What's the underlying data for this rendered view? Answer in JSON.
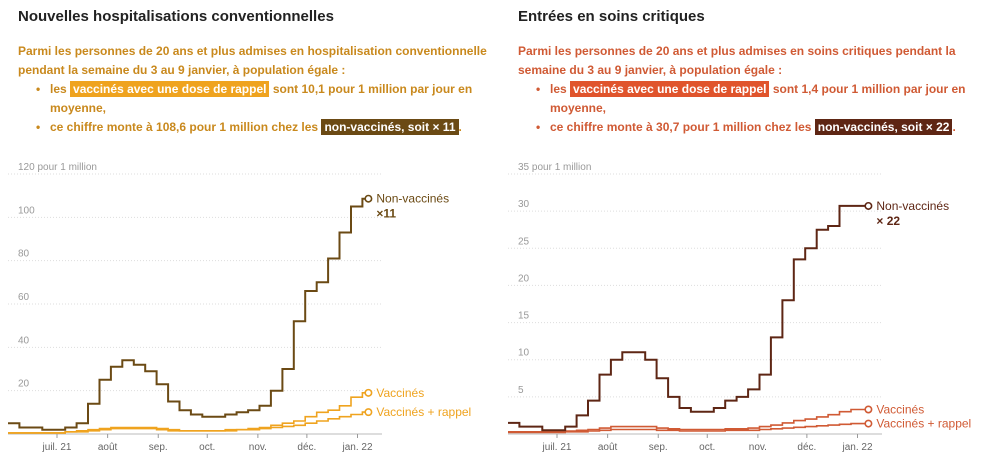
{
  "panels": [
    {
      "title": "Nouvelles hospitalisations conventionnelles",
      "intro": "Parmi les personnes de 20 ans et plus admises en hospitalisation conventionnelle pendant la semaine du 3 au 9 janvier, à population égale :",
      "bullet1": {
        "prefix": "les",
        "highlight": "vaccinés avec une dose de rappel",
        "suffix": "sont 10,1 pour 1 million par jour en moyenne,"
      },
      "bullet2": {
        "prefix": "ce chiffre monte à 108,6 pour 1 million chez les",
        "highlight": "non-vaccinés, soit × 11",
        "suffix": "."
      },
      "bullet_marker": "•",
      "colors": {
        "text": "#c9891d",
        "highlight_booster": "#efa31f",
        "highlight_unvax": "#6b4a14"
      }
    },
    {
      "title": "Entrées en soins critiques",
      "intro": "Parmi les personnes de 20 ans et plus admises en soins critiques pendant la semaine du 3 au 9 janvier, à population égale :",
      "bullet1": {
        "prefix": "les",
        "highlight": "vaccinés avec une dose de rappel",
        "suffix": "sont 1,4 pour 1 million par jour en moyenne,"
      },
      "bullet2": {
        "prefix": "ce chiffre monte à 30,7 pour 1 million chez les",
        "highlight": "non-vaccinés, soit × 22",
        "suffix": "."
      },
      "bullet_marker": "•",
      "colors": {
        "text": "#d05a34",
        "highlight_booster": "#e0542c",
        "highlight_unvax": "#5e2614"
      }
    }
  ],
  "chart_data": [
    {
      "type": "line",
      "step": true,
      "y_unit_label": "pour 1 million",
      "ylim": [
        0,
        120
      ],
      "yticks": [
        20,
        40,
        60,
        80,
        100,
        120
      ],
      "xlim": [
        "2021-06-01",
        "2022-01-16"
      ],
      "xticks": [
        {
          "date": "2021-07-01",
          "label": "juil. 21"
        },
        {
          "date": "2021-08-01",
          "label": "août"
        },
        {
          "date": "2021-09-01",
          "label": "sep."
        },
        {
          "date": "2021-10-01",
          "label": "oct."
        },
        {
          "date": "2021-11-01",
          "label": "nov."
        },
        {
          "date": "2021-12-01",
          "label": "déc."
        },
        {
          "date": "2022-01-01",
          "label": "jan. 22"
        }
      ],
      "x": [
        "2021-06-01",
        "2021-06-08",
        "2021-06-15",
        "2021-06-22",
        "2021-06-29",
        "2021-07-06",
        "2021-07-13",
        "2021-07-20",
        "2021-07-27",
        "2021-08-03",
        "2021-08-10",
        "2021-08-17",
        "2021-08-24",
        "2021-08-31",
        "2021-09-07",
        "2021-09-14",
        "2021-09-21",
        "2021-09-28",
        "2021-10-05",
        "2021-10-12",
        "2021-10-19",
        "2021-10-26",
        "2021-11-02",
        "2021-11-09",
        "2021-11-16",
        "2021-11-23",
        "2021-11-30",
        "2021-12-07",
        "2021-12-14",
        "2021-12-21",
        "2021-12-28",
        "2022-01-04"
      ],
      "series": [
        {
          "name": "Non-vaccinés",
          "color": "#6b4a14",
          "values": [
            5,
            3,
            3,
            2,
            2,
            3,
            5,
            14,
            25,
            31,
            34,
            32,
            29,
            23,
            15,
            11,
            9,
            8,
            8,
            9,
            10,
            11,
            13,
            20,
            30,
            52,
            66,
            70,
            81,
            93,
            105,
            108.6
          ]
        },
        {
          "name": "Vaccinés",
          "color": "#efa31f",
          "values": [
            0.5,
            0.5,
            0.5,
            0.5,
            0.5,
            1,
            1.5,
            2,
            2.5,
            3,
            3,
            3,
            3,
            2.5,
            2,
            1.5,
            1.5,
            1.5,
            1.5,
            2,
            2,
            2.5,
            3,
            4,
            5,
            6,
            8,
            10,
            11,
            13,
            17,
            19
          ]
        },
        {
          "name": "Vaccinés + rappel",
          "color": "#efa31f",
          "values": [
            0.5,
            0.5,
            0.5,
            0.5,
            0.5,
            1,
            1,
            1.5,
            2,
            2.5,
            2.5,
            2.5,
            2.5,
            2,
            1.5,
            1.5,
            1.5,
            1.5,
            1.5,
            1.5,
            2,
            2,
            2.5,
            3,
            3.5,
            4,
            5,
            6,
            7,
            8,
            9,
            10.1
          ]
        }
      ],
      "annotation": "×11"
    },
    {
      "type": "line",
      "step": true,
      "y_unit_label": "pour 1 million",
      "ylim": [
        0,
        35
      ],
      "yticks": [
        5,
        10,
        15,
        20,
        25,
        30,
        35
      ],
      "xlim": [
        "2021-06-01",
        "2022-01-16"
      ],
      "xticks": [
        {
          "date": "2021-07-01",
          "label": "juil. 21"
        },
        {
          "date": "2021-08-01",
          "label": "août"
        },
        {
          "date": "2021-09-01",
          "label": "sep."
        },
        {
          "date": "2021-10-01",
          "label": "oct."
        },
        {
          "date": "2021-11-01",
          "label": "nov."
        },
        {
          "date": "2021-12-01",
          "label": "déc."
        },
        {
          "date": "2022-01-01",
          "label": "jan. 22"
        }
      ],
      "x": [
        "2021-06-01",
        "2021-06-08",
        "2021-06-15",
        "2021-06-22",
        "2021-06-29",
        "2021-07-06",
        "2021-07-13",
        "2021-07-20",
        "2021-07-27",
        "2021-08-03",
        "2021-08-10",
        "2021-08-17",
        "2021-08-24",
        "2021-08-31",
        "2021-09-07",
        "2021-09-14",
        "2021-09-21",
        "2021-09-28",
        "2021-10-05",
        "2021-10-12",
        "2021-10-19",
        "2021-10-26",
        "2021-11-02",
        "2021-11-09",
        "2021-11-16",
        "2021-11-23",
        "2021-11-30",
        "2021-12-07",
        "2021-12-14",
        "2021-12-21",
        "2021-12-28",
        "2022-01-04"
      ],
      "series": [
        {
          "name": "Non-vaccinés",
          "color": "#5e2614",
          "values": [
            1.5,
            1,
            1,
            0.5,
            0.5,
            1,
            2.5,
            4.5,
            8,
            10,
            11,
            11,
            10,
            7.5,
            5,
            3.5,
            3,
            3,
            3.5,
            4.5,
            5,
            6,
            8,
            13,
            18,
            23.5,
            25,
            27.5,
            28,
            30.7,
            30.7,
            30.7
          ]
        },
        {
          "name": "Vaccinés",
          "color": "#d05a34",
          "values": [
            0.3,
            0.3,
            0.3,
            0.3,
            0.3,
            0.4,
            0.5,
            0.6,
            0.8,
            1,
            1,
            1,
            1,
            0.8,
            0.7,
            0.6,
            0.6,
            0.6,
            0.6,
            0.7,
            0.7,
            0.8,
            1,
            1.2,
            1.5,
            1.8,
            2,
            2.3,
            2.6,
            3,
            3.3,
            3.3
          ]
        },
        {
          "name": "Vaccinés + rappel",
          "color": "#d05a34",
          "values": [
            0.2,
            0.2,
            0.2,
            0.2,
            0.2,
            0.3,
            0.3,
            0.4,
            0.5,
            0.6,
            0.6,
            0.6,
            0.6,
            0.5,
            0.5,
            0.4,
            0.4,
            0.4,
            0.4,
            0.5,
            0.5,
            0.5,
            0.6,
            0.7,
            0.8,
            0.9,
            1,
            1.1,
            1.2,
            1.3,
            1.4,
            1.4
          ]
        }
      ],
      "annotation": "× 22"
    }
  ]
}
